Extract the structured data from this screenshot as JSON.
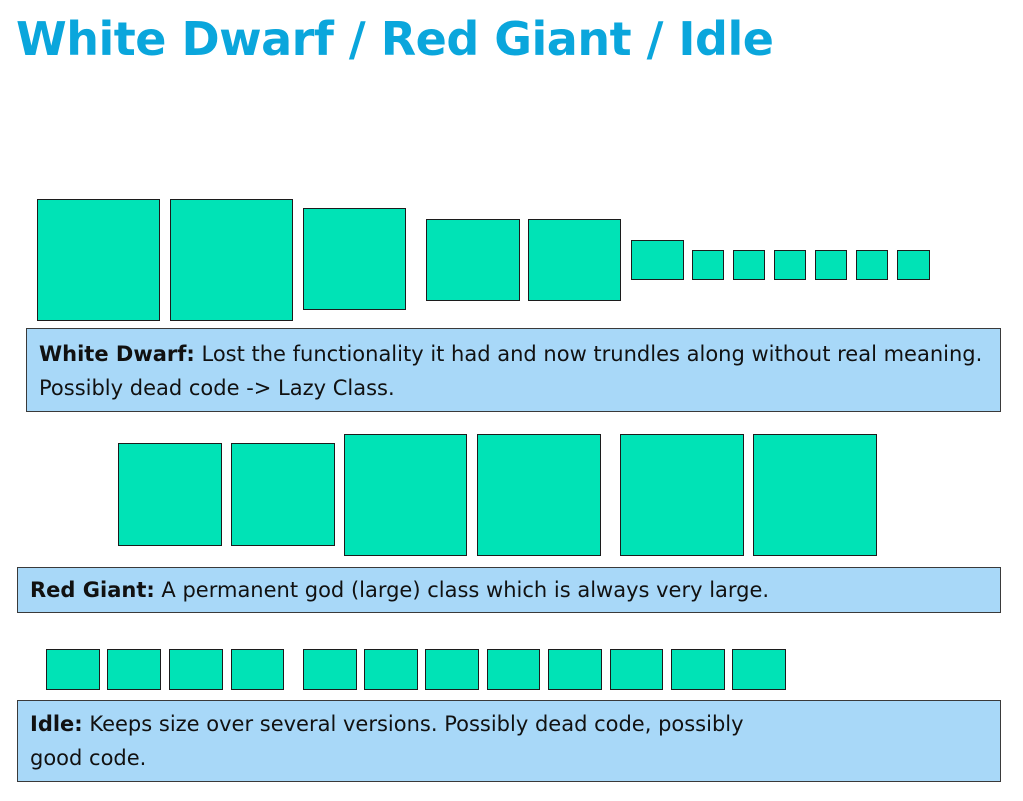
{
  "title": "White Dwarf / Red Giant / Idle",
  "rows": [
    {
      "id": "white-dwarf",
      "square_count": 12,
      "caption_term": "White Dwarf:",
      "caption_text": " Lost the functionality it had and now trundles along without real meaning. Possibly dead code -> Lazy Class."
    },
    {
      "id": "red-giant",
      "square_count": 6,
      "caption_term": "Red Giant:",
      "caption_text": " A permanent god (large) class which is always very large."
    },
    {
      "id": "idle",
      "square_count": 12,
      "caption_term": "Idle:",
      "caption_text": " Keeps size over several versions. Possibly dead code, possibly good code."
    }
  ],
  "colors": {
    "title": "#0aa6dc",
    "square_fill": "#00e3b6",
    "square_border": "#1c1c1c",
    "caption_fill": "#a8d8f8",
    "caption_border": "#3a3a3a"
  }
}
